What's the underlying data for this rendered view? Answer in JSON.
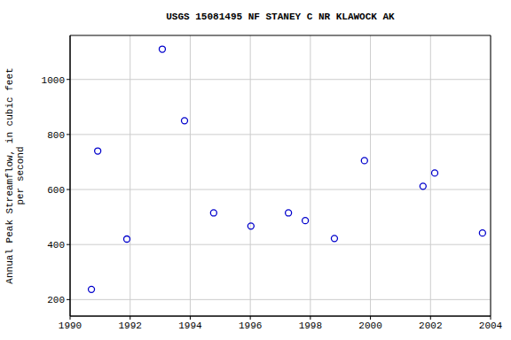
{
  "chart_data": {
    "type": "scatter",
    "title": "USGS 15081495 NF STANEY C NR KLAWOCK AK",
    "y_label": [
      "Annual Peak Streamflow, in cubic feet",
      "per second"
    ],
    "x": [
      1990.71,
      1990.92,
      1991.89,
      1993.07,
      1993.81,
      1994.78,
      1996.02,
      1997.27,
      1997.83,
      1998.8,
      1999.8,
      2001.75,
      2002.14,
      2003.73
    ],
    "values": [
      237,
      740,
      420,
      1110,
      850,
      515,
      467,
      515,
      487,
      422,
      705,
      612,
      660,
      442
    ],
    "color": "#0000cc",
    "marker": "circle_open",
    "xlim": [
      1990,
      2004
    ],
    "xticks": [
      1990,
      1992,
      1994,
      1996,
      1998,
      2000,
      2002,
      2004
    ],
    "ylim": [
      140,
      1160
    ],
    "yticks": [
      200,
      400,
      600,
      800,
      1000
    ],
    "grid": true
  }
}
